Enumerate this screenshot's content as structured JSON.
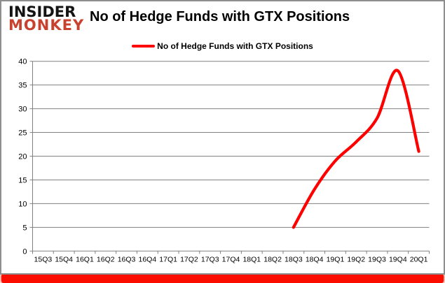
{
  "header": {
    "logo_line1": "INSIDER",
    "logo_line2": "MONKEY",
    "title": "No of Hedge Funds with GTX Positions"
  },
  "legend": {
    "label": "No of Hedge Funds with GTX Positions"
  },
  "colors": {
    "series_line": "#ff0000",
    "logo_accent": "#c8432f",
    "grid": "#808080",
    "bottom_bar": "#fb0e00"
  },
  "chart_data": {
    "type": "line",
    "title": "No of Hedge Funds with GTX Positions",
    "categories": [
      "15Q3",
      "15Q4",
      "16Q1",
      "16Q2",
      "16Q3",
      "16Q4",
      "17Q1",
      "17Q2",
      "17Q3",
      "17Q4",
      "18Q1",
      "18Q2",
      "18Q3",
      "18Q4",
      "19Q1",
      "19Q2",
      "19Q3",
      "19Q4",
      "20Q1"
    ],
    "series": [
      {
        "name": "No of Hedge Funds with GTX Positions",
        "color": "#ff0000",
        "values": [
          null,
          null,
          null,
          null,
          null,
          null,
          null,
          null,
          null,
          null,
          null,
          null,
          5,
          13,
          19,
          23,
          28,
          38,
          21
        ]
      }
    ],
    "xlabel": "",
    "ylabel": "",
    "ylim": [
      0,
      40
    ],
    "ytick_step": 5,
    "grid": true,
    "legend_position": "top-center"
  }
}
